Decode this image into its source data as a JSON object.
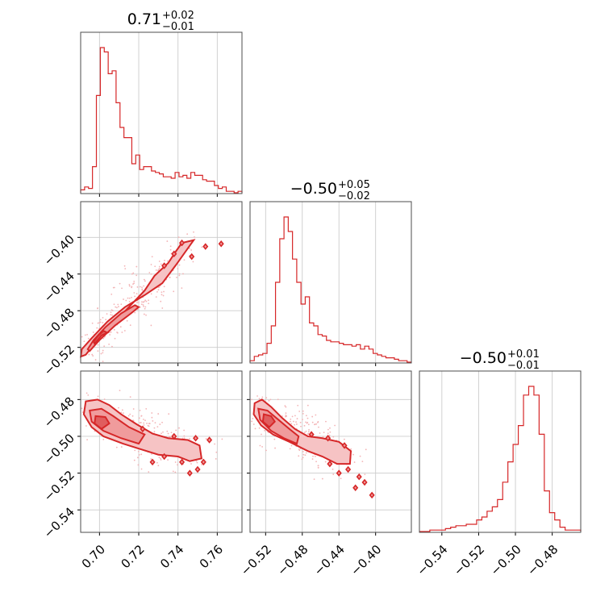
{
  "colors": {
    "main": "#d62728",
    "fill_outer": "#f6c3c4",
    "fill_inner": "#f09b9c",
    "fill_core": "#e05d5e",
    "scatter": "#f3b4b6"
  },
  "chart_data": {
    "type": "corner",
    "parameters": [
      {
        "title": {
          "main": "0.71",
          "plus": "+0.02",
          "minus": "−0.01"
        },
        "range": [
          0.6904,
          0.7726
        ],
        "ticks": [
          0.7,
          0.72,
          0.74,
          0.76
        ],
        "tick_labels": [
          "0.70",
          "0.72",
          "0.74",
          "0.76"
        ]
      },
      {
        "title": {
          "main": "−0.50",
          "plus": "+0.05",
          "minus": "−0.02"
        },
        "range": [
          -0.537,
          -0.361
        ],
        "ticks": [
          -0.52,
          -0.48,
          -0.44,
          -0.4
        ],
        "tick_labels": [
          "−0.52",
          "−0.48",
          "−0.44",
          "−0.40"
        ]
      },
      {
        "title": {
          "main": "−0.50",
          "plus": "+0.01",
          "minus": "−0.01"
        },
        "range": [
          -0.5522,
          -0.4645
        ],
        "ticks": [
          -0.54,
          -0.52,
          -0.5,
          -0.48
        ],
        "tick_labels": [
          "−0.54",
          "−0.52",
          "−0.50",
          "−0.48"
        ]
      }
    ],
    "histograms": [
      {
        "param": 0,
        "counts": [
          2,
          4,
          3,
          18,
          67,
          100,
          97,
          82,
          84,
          62,
          45,
          38,
          38,
          20,
          26,
          16,
          18,
          18,
          15,
          14,
          13,
          11,
          11,
          10,
          14,
          11,
          12,
          10,
          14,
          12,
          12,
          9,
          8,
          8,
          5,
          3,
          4,
          1,
          1,
          0,
          1
        ]
      },
      {
        "param": 1,
        "counts": [
          1,
          4,
          5,
          6,
          13,
          25,
          55,
          85,
          100,
          90,
          71,
          55,
          40,
          45,
          27,
          25,
          19,
          18,
          15,
          14,
          14,
          13,
          12,
          12,
          11,
          12,
          9,
          11,
          9,
          6,
          5,
          4,
          3,
          3,
          2,
          1,
          1,
          0
        ]
      },
      {
        "param": 2,
        "counts": [
          0,
          0,
          1,
          1,
          1,
          2,
          3,
          4,
          4,
          5,
          5,
          8,
          10,
          14,
          17,
          22,
          34,
          48,
          60,
          73,
          94,
          100,
          94,
          67,
          28,
          13,
          8,
          3,
          1,
          1,
          1
        ]
      }
    ],
    "pairs": [
      {
        "x_param": 0,
        "y_param": 1,
        "scatter_count": 260,
        "contours": [
          {
            "level": "outer",
            "points": [
              [
                0.6905,
                -0.53
              ],
              [
                0.691,
                -0.522
              ],
              [
                0.696,
                -0.51
              ],
              [
                0.704,
                -0.492
              ],
              [
                0.713,
                -0.476
              ],
              [
                0.723,
                -0.463
              ],
              [
                0.732,
                -0.45
              ],
              [
                0.739,
                -0.43
              ],
              [
                0.745,
                -0.412
              ],
              [
                0.748,
                -0.403
              ],
              [
                0.742,
                -0.406
              ],
              [
                0.739,
                -0.415
              ],
              [
                0.735,
                -0.428
              ],
              [
                0.728,
                -0.442
              ],
              [
                0.723,
                -0.458
              ],
              [
                0.715,
                -0.476
              ],
              [
                0.707,
                -0.494
              ],
              [
                0.699,
                -0.512
              ],
              [
                0.693,
                -0.528
              ]
            ]
          },
          {
            "level": "inner",
            "points": [
              [
                0.695,
                -0.524
              ],
              [
                0.7,
                -0.512
              ],
              [
                0.708,
                -0.496
              ],
              [
                0.716,
                -0.483
              ],
              [
                0.72,
                -0.476
              ],
              [
                0.718,
                -0.474
              ],
              [
                0.711,
                -0.483
              ],
              [
                0.703,
                -0.498
              ],
              [
                0.697,
                -0.512
              ],
              [
                0.694,
                -0.522
              ]
            ]
          },
          {
            "level": "core",
            "points": [
              [
                0.6975,
                -0.516
              ],
              [
                0.701,
                -0.507
              ],
              [
                0.704,
                -0.504
              ],
              [
                0.702,
                -0.502
              ],
              [
                0.699,
                -0.508
              ],
              [
                0.697,
                -0.514
              ]
            ]
          }
        ],
        "islands": [
          [
            0.742,
            -0.406
          ],
          [
            0.754,
            -0.41
          ],
          [
            0.762,
            -0.407
          ],
          [
            0.738,
            -0.418
          ],
          [
            0.747,
            -0.421
          ],
          [
            0.733,
            -0.431
          ]
        ]
      },
      {
        "x_param": 0,
        "y_param": 2,
        "scatter_count": 260,
        "contours": [
          {
            "level": "outer",
            "points": [
              [
                0.693,
                -0.481
              ],
              [
                0.699,
                -0.48
              ],
              [
                0.705,
                -0.483
              ],
              [
                0.711,
                -0.488
              ],
              [
                0.719,
                -0.4935
              ],
              [
                0.727,
                -0.4985
              ],
              [
                0.735,
                -0.501
              ],
              [
                0.745,
                -0.502
              ],
              [
                0.751,
                -0.505
              ],
              [
                0.752,
                -0.512
              ],
              [
                0.746,
                -0.5135
              ],
              [
                0.74,
                -0.511
              ],
              [
                0.73,
                -0.51
              ],
              [
                0.721,
                -0.507
              ],
              [
                0.712,
                -0.504
              ],
              [
                0.702,
                -0.5
              ],
              [
                0.696,
                -0.495
              ],
              [
                0.692,
                -0.488
              ]
            ]
          },
          {
            "level": "inner",
            "points": [
              [
                0.695,
                -0.486
              ],
              [
                0.701,
                -0.485
              ],
              [
                0.707,
                -0.489
              ],
              [
                0.715,
                -0.495
              ],
              [
                0.723,
                -0.499
              ],
              [
                0.72,
                -0.504
              ],
              [
                0.711,
                -0.501
              ],
              [
                0.702,
                -0.497
              ],
              [
                0.696,
                -0.492
              ]
            ]
          },
          {
            "level": "core",
            "points": [
              [
                0.698,
                -0.489
              ],
              [
                0.703,
                -0.4895
              ],
              [
                0.705,
                -0.493
              ],
              [
                0.701,
                -0.496
              ],
              [
                0.6975,
                -0.493
              ]
            ]
          }
        ],
        "islands": [
          [
            0.722,
            -0.496
          ],
          [
            0.738,
            -0.5
          ],
          [
            0.749,
            -0.501
          ],
          [
            0.756,
            -0.502
          ],
          [
            0.742,
            -0.514
          ],
          [
            0.727,
            -0.514
          ],
          [
            0.733,
            -0.511
          ],
          [
            0.746,
            -0.52
          ],
          [
            0.75,
            -0.518
          ],
          [
            0.753,
            -0.514
          ]
        ]
      },
      {
        "x_param": 1,
        "y_param": 2,
        "scatter_count": 260,
        "contours": [
          {
            "level": "outer",
            "points": [
              [
                -0.532,
                -0.482
              ],
              [
                -0.524,
                -0.48
              ],
              [
                -0.514,
                -0.484
              ],
              [
                -0.502,
                -0.49
              ],
              [
                -0.488,
                -0.496
              ],
              [
                -0.474,
                -0.5
              ],
              [
                -0.458,
                -0.501
              ],
              [
                -0.44,
                -0.503
              ],
              [
                -0.427,
                -0.508
              ],
              [
                -0.428,
                -0.515
              ],
              [
                -0.442,
                -0.515
              ],
              [
                -0.458,
                -0.511
              ],
              [
                -0.474,
                -0.508
              ],
              [
                -0.494,
                -0.503
              ],
              [
                -0.512,
                -0.499
              ],
              [
                -0.525,
                -0.494
              ],
              [
                -0.533,
                -0.488
              ]
            ]
          },
          {
            "level": "inner",
            "points": [
              [
                -0.528,
                -0.485
              ],
              [
                -0.518,
                -0.486
              ],
              [
                -0.506,
                -0.491
              ],
              [
                -0.494,
                -0.496
              ],
              [
                -0.484,
                -0.5
              ],
              [
                -0.486,
                -0.504
              ],
              [
                -0.5,
                -0.501
              ],
              [
                -0.514,
                -0.497
              ],
              [
                -0.526,
                -0.491
              ]
            ]
          },
          {
            "level": "core",
            "points": [
              [
                -0.522,
                -0.488
              ],
              [
                -0.514,
                -0.489
              ],
              [
                -0.51,
                -0.492
              ],
              [
                -0.516,
                -0.495
              ],
              [
                -0.523,
                -0.492
              ]
            ]
          }
        ],
        "islands": [
          [
            -0.47,
            -0.499
          ],
          [
            -0.452,
            -0.501
          ],
          [
            -0.434,
            -0.505
          ],
          [
            -0.45,
            -0.515
          ],
          [
            -0.44,
            -0.52
          ],
          [
            -0.43,
            -0.518
          ],
          [
            -0.418,
            -0.522
          ],
          [
            -0.412,
            -0.525
          ],
          [
            -0.404,
            -0.532
          ],
          [
            -0.422,
            -0.528
          ]
        ]
      }
    ]
  }
}
